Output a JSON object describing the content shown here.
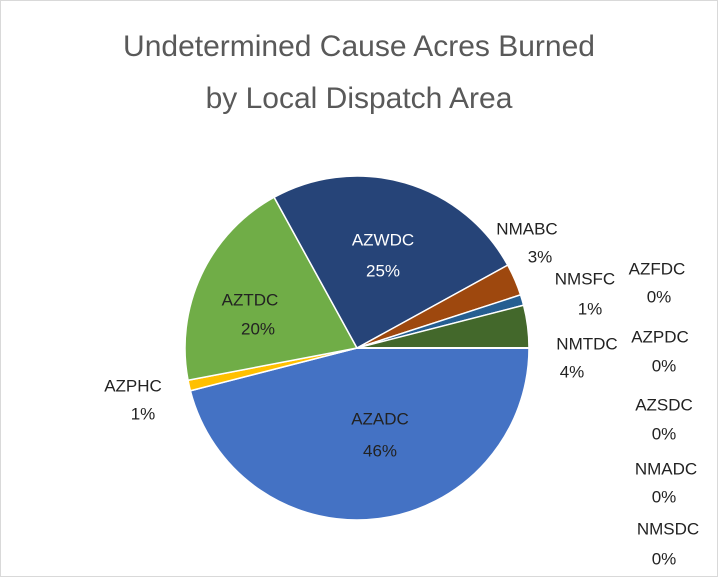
{
  "chart_data": {
    "type": "pie",
    "title": [
      "Undetermined Cause Acres Burned",
      "by Local Dispatch Area"
    ],
    "categories": [
      "AZADC",
      "AZPHC",
      "AZTDC",
      "AZWDC",
      "NMABC",
      "NMSFC",
      "NMTDC",
      "AZFDC",
      "AZPDC",
      "AZSDC",
      "NMADC",
      "NMSDC"
    ],
    "values": [
      46,
      1,
      20,
      25,
      3,
      1,
      4,
      0,
      0,
      0,
      0,
      0
    ],
    "value_labels": [
      "46%",
      "1%",
      "20%",
      "25%",
      "3%",
      "1%",
      "4%",
      "0%",
      "0%",
      "0%",
      "0%",
      "0%"
    ],
    "colors": [
      "#4472c4",
      "#ffc000",
      "#70ad47",
      "#264478",
      "#9e480e",
      "#255e91",
      "#43682b",
      "#636363",
      "#997300",
      "#698ed0",
      "#f1975a",
      "#b7b7b7"
    ]
  }
}
